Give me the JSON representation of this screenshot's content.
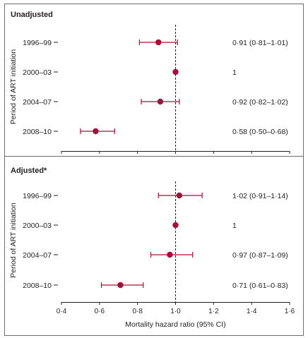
{
  "chart_data": {
    "type": "forest",
    "xlabel": "Mortality hazard ratio (95% CI)",
    "ylabel": "Period of ART initiation",
    "xlim": [
      0.4,
      1.6
    ],
    "xticks": [
      0.4,
      0.6,
      0.8,
      1.0,
      1.2,
      1.4,
      1.6
    ],
    "xtick_labels": [
      "0·4",
      "0·6",
      "0·8",
      "1·0",
      "1·2",
      "1·4",
      "1·6"
    ],
    "reference_line": 1.0,
    "grid": false,
    "colors": {
      "marker": "#a5103a",
      "reference": "#231f20",
      "frame": "#6d6e71"
    },
    "panels": [
      {
        "title": "Unadjusted",
        "categories": [
          "1996–99",
          "2000–03",
          "2004–07",
          "2008–10"
        ],
        "estimates": [
          0.91,
          1.0,
          0.92,
          0.58
        ],
        "lower": [
          0.81,
          null,
          0.82,
          0.5
        ],
        "upper": [
          1.01,
          null,
          1.02,
          0.68
        ],
        "labels": [
          "0·91 (0·81–1·01)",
          "1",
          "0·92 (0·82–1·02)",
          "0·58 (0·50–0·68)"
        ]
      },
      {
        "title": "Adjusted*",
        "categories": [
          "1996–99",
          "2000–03",
          "2004–07",
          "2008–10"
        ],
        "estimates": [
          1.02,
          1.0,
          0.97,
          0.71
        ],
        "lower": [
          0.91,
          null,
          0.87,
          0.61
        ],
        "upper": [
          1.14,
          null,
          1.09,
          0.83
        ],
        "labels": [
          "1·02 (0·91–1·14)",
          "1",
          "0·97 (0·87–1·09)",
          "0·71 (0·61–0·83)"
        ]
      }
    ]
  }
}
